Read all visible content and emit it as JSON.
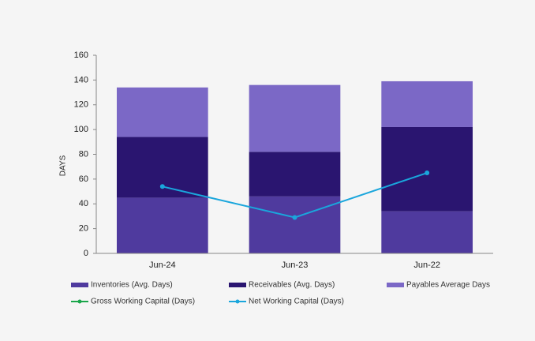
{
  "chart_data": {
    "type": "bar",
    "categories": [
      "Jun-24",
      "Jun-23",
      "Jun-22"
    ],
    "ylabel": "DAYS",
    "ylim": [
      0,
      160
    ],
    "yticks": [
      0,
      20,
      40,
      60,
      80,
      100,
      120,
      140,
      160
    ],
    "stacked": true,
    "series": [
      {
        "name": "Inventories (Avg. Days)",
        "type": "bar",
        "color": "#4f3a9e",
        "values": [
          45,
          46,
          34
        ]
      },
      {
        "name": "Receivables (Avg. Days)",
        "type": "bar",
        "color": "#2a1570",
        "values": [
          49,
          36,
          68
        ]
      },
      {
        "name": "Payables Average Days",
        "type": "bar",
        "color": "#7b68c6",
        "values": [
          40,
          54,
          37
        ]
      },
      {
        "name": "Gross Working Capital (Days)",
        "type": "line",
        "color": "#1aa64a",
        "values": [
          null,
          null,
          null
        ]
      },
      {
        "name": "Net Working Capital (Days)",
        "type": "line",
        "color": "#1aa6dc",
        "values": [
          54,
          29,
          65
        ]
      }
    ]
  }
}
